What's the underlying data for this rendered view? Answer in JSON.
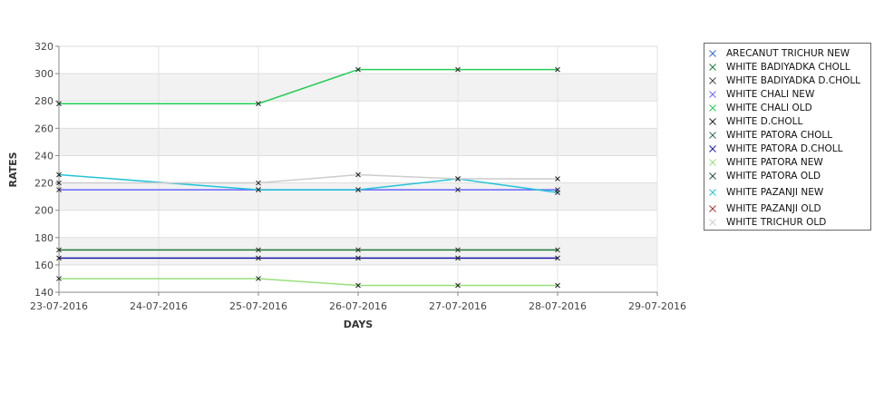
{
  "chart_data": {
    "type": "line",
    "xlabel": "DAYS",
    "ylabel": "RATES",
    "x_ticks": [
      "23-07-2016",
      "24-07-2016",
      "25-07-2016",
      "26-07-2016",
      "27-07-2016",
      "28-07-2016",
      "29-07-2016"
    ],
    "xlim": [
      "23-07-2016",
      "29-07-2016"
    ],
    "ylim": [
      140,
      320
    ],
    "y_ticks": [
      140,
      160,
      180,
      200,
      220,
      240,
      260,
      280,
      300,
      320
    ],
    "grid": true,
    "alternating_bands": true,
    "legend_position": "right",
    "x": [
      "23-07-2016",
      "25-07-2016",
      "26-07-2016",
      "27-07-2016",
      "28-07-2016"
    ],
    "series": [
      {
        "name": "ARECANUT TRICHUR NEW",
        "color": "#3366cc",
        "values": [
          null,
          null,
          null,
          null,
          null
        ]
      },
      {
        "name": "WHITE BADIYADKA CHOLL",
        "color": "#1f7a3a",
        "values": [
          171,
          171,
          171,
          171,
          171
        ]
      },
      {
        "name": "WHITE BADIYADKA D.CHOLL",
        "color": "#444444",
        "values": [
          null,
          null,
          null,
          null,
          null
        ]
      },
      {
        "name": "WHITE CHALI NEW",
        "color": "#6666ff",
        "values": [
          215,
          215,
          215,
          215,
          215
        ]
      },
      {
        "name": "WHITE CHALI OLD",
        "color": "#22cc55",
        "values": [
          278,
          278,
          303,
          303,
          303
        ]
      },
      {
        "name": "WHITE D.CHOLL",
        "color": "#222222",
        "values": [
          null,
          null,
          null,
          null,
          null
        ]
      },
      {
        "name": "WHITE PATORA CHOLL",
        "color": "#2e6b5e",
        "values": [
          null,
          null,
          null,
          null,
          null
        ]
      },
      {
        "name": "WHITE PATORA D.CHOLL",
        "color": "#1a1aaa",
        "values": [
          165,
          165,
          165,
          165,
          165
        ]
      },
      {
        "name": "WHITE PATORA NEW",
        "color": "#99e07a",
        "values": [
          150,
          150,
          145,
          145,
          145
        ]
      },
      {
        "name": "WHITE PATORA OLD",
        "color": "#2a4a4a",
        "values": [
          null,
          null,
          null,
          null,
          null
        ]
      },
      {
        "name": "WHITE PAZANJI NEW",
        "color": "#22c4d8",
        "values": [
          226,
          215,
          215,
          223,
          213
        ]
      },
      {
        "name": "WHITE PAZANJI OLD",
        "color": "#aa3333",
        "values": [
          null,
          null,
          null,
          null,
          null
        ]
      },
      {
        "name": "WHITE TRICHUR OLD",
        "color": "#cccccc",
        "values": [
          220,
          220,
          226,
          223,
          223
        ]
      }
    ]
  }
}
